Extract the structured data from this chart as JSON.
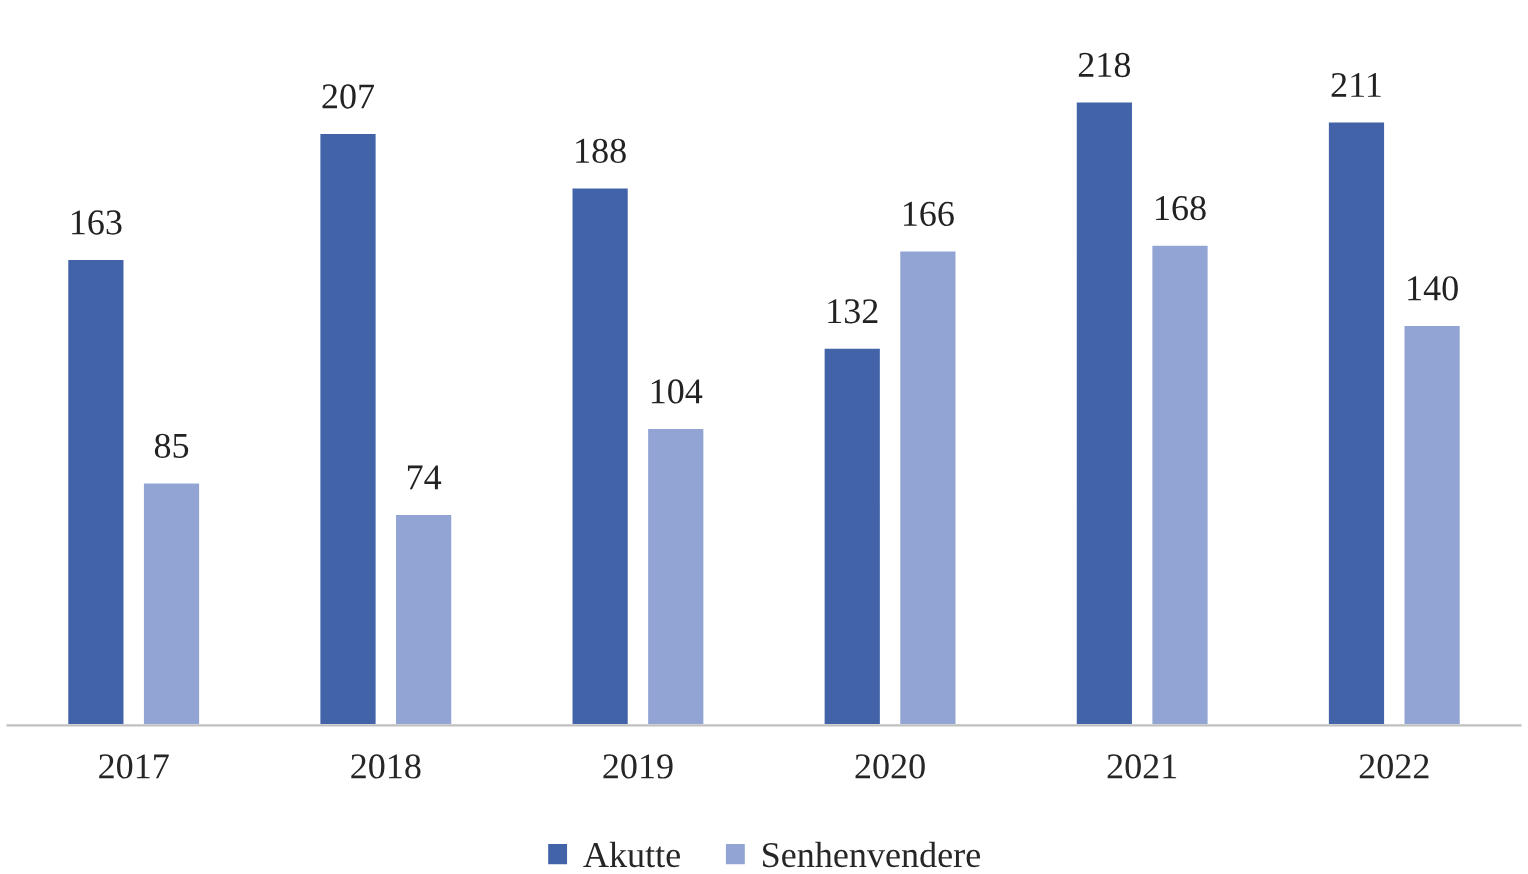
{
  "chart_data": {
    "type": "bar",
    "categories": [
      "2017",
      "2018",
      "2019",
      "2020",
      "2021",
      "2022"
    ],
    "series": [
      {
        "name": "Akutte",
        "color": "#4263a8",
        "values": [
          163,
          207,
          188,
          132,
          218,
          211
        ]
      },
      {
        "name": "Senhenvendere",
        "color": "#91a4d4",
        "values": [
          85,
          74,
          104,
          166,
          168,
          140
        ]
      }
    ],
    "data_labels": true,
    "legend": "bottom",
    "grid": false,
    "tick_labels": "x"
  }
}
